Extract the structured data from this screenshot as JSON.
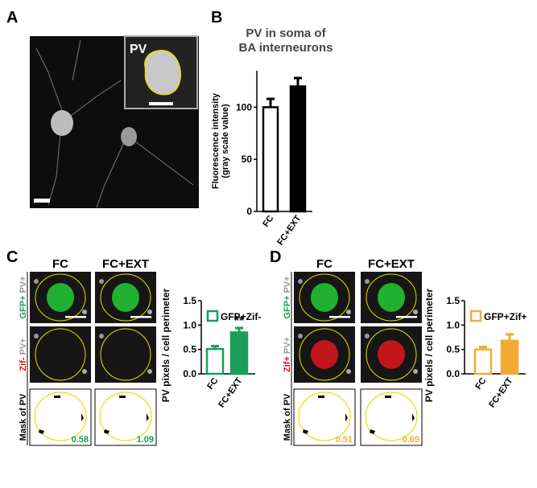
{
  "panels": {
    "A": {
      "label": "A",
      "inset": "PV"
    },
    "B": {
      "label": "B"
    },
    "C": {
      "label": "C",
      "columns": [
        "FC",
        "FC+EXT"
      ],
      "row_labels": [
        [
          "GFP+",
          "PV+"
        ],
        [
          "Zif-",
          "PV+"
        ],
        [
          "Mask of PV"
        ]
      ],
      "mask_values": [
        0.58,
        1.09
      ]
    },
    "D": {
      "label": "D",
      "columns": [
        "FC",
        "FC+EXT"
      ],
      "row_labels": [
        [
          "GFP+",
          "PV+"
        ],
        [
          "Zif+",
          "PV+"
        ],
        [
          "Mask of PV"
        ]
      ],
      "mask_values": [
        0.51,
        0.69
      ]
    }
  },
  "chart_data": [
    {
      "type": "bar",
      "title": [
        "PV in soma of",
        "BA interneurons"
      ],
      "ylabel": [
        "Fluorescence intensity",
        "(gray scale value)"
      ],
      "categories": [
        "FC",
        "FC+EXT"
      ],
      "values": [
        100,
        120
      ],
      "errors": [
        8,
        8
      ],
      "fills": [
        "#ffffff",
        "#000000"
      ],
      "color": "#000000",
      "ylim": [
        0,
        135
      ],
      "yticks": [
        0,
        50,
        100
      ]
    },
    {
      "type": "bar",
      "ylabel": [
        "PV pixels / cell perimeter"
      ],
      "legend": "GFP+Zif-",
      "categories": [
        "FC",
        "FC+EXT"
      ],
      "values": [
        0.51,
        0.85
      ],
      "errors": [
        0.06,
        0.09
      ],
      "fills": [
        "#ffffff",
        "#1a9e5a"
      ],
      "color": "#1a9e5a",
      "annotation": "**",
      "ylim": [
        0,
        1.5
      ],
      "yticks": [
        {
          "value": 0,
          "label": "0.0"
        },
        0.5,
        {
          "value": 1,
          "label": "1.0"
        },
        1.5
      ]
    },
    {
      "type": "bar",
      "ylabel": [
        "PV pixels / cell perimeter"
      ],
      "legend": "GFP+Zif+",
      "categories": [
        "FC",
        "FC+EXT"
      ],
      "values": [
        0.5,
        0.68
      ],
      "errors": [
        0.05,
        0.13
      ],
      "fills": [
        "#ffffff",
        "#f2aa36"
      ],
      "color": "#f2aa36",
      "ylim": [
        0,
        1.5
      ],
      "yticks": [
        {
          "value": 0,
          "label": "0.0"
        },
        0.5,
        {
          "value": 1,
          "label": "1.0"
        },
        1.5
      ]
    }
  ]
}
